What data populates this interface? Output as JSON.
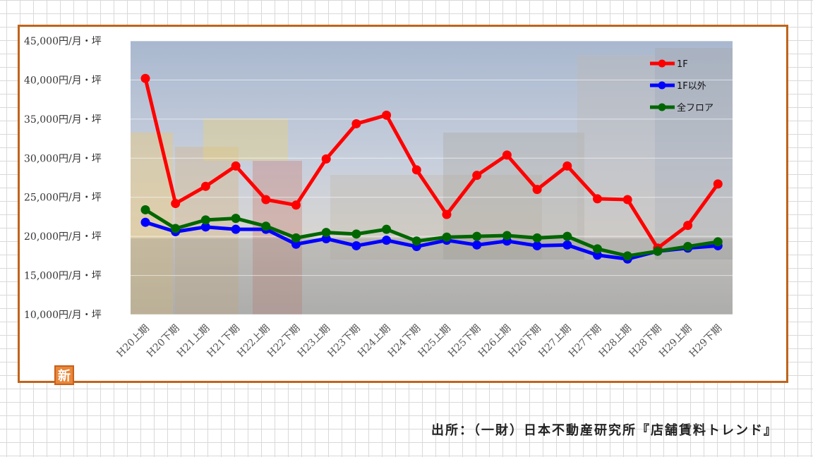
{
  "source": "出所：（一財）日本不動産研究所『店舗賃料トレンド』",
  "badge_text": "新",
  "chart_data": {
    "type": "line",
    "title": "",
    "xlabel": "",
    "ylabel": "",
    "ylim": [
      10000,
      45000
    ],
    "yticks": [
      10000,
      15000,
      20000,
      25000,
      30000,
      35000,
      40000,
      45000
    ],
    "ytick_labels": [
      "10,000円/月・坪",
      "15,000円/月・坪",
      "20,000円/月・坪",
      "25,000円/月・坪",
      "30,000円/月・坪",
      "35,000円/月・坪",
      "40,000円/月・坪",
      "45,000円/月・坪"
    ],
    "grid": true,
    "legend_position": "top-right",
    "background": "night street photo (faded)",
    "categories": [
      "H20上期",
      "H20下期",
      "H21上期",
      "H21下期",
      "H22上期",
      "H22下期",
      "H23上期",
      "H23下期",
      "H24上期",
      "H24下期",
      "H25上期",
      "H25下期",
      "H26上期",
      "H26下期",
      "H27上期",
      "H27下期",
      "H28上期",
      "H28下期",
      "H29上期",
      "H29下期"
    ],
    "series": [
      {
        "name": "1F",
        "color": "#ff0000",
        "values": [
          40200,
          24200,
          26400,
          29000,
          24700,
          24000,
          29900,
          34400,
          35500,
          28500,
          22800,
          27800,
          30400,
          26000,
          29000,
          24800,
          24700,
          18500,
          21400,
          26700
        ]
      },
      {
        "name": "1F以外",
        "color": "#0000ff",
        "values": [
          21800,
          20600,
          21200,
          20900,
          20900,
          19000,
          19700,
          18800,
          19500,
          18700,
          19500,
          18900,
          19400,
          18800,
          18900,
          17600,
          17100,
          18100,
          18500,
          18800
        ]
      },
      {
        "name": "全フロア",
        "color": "#006600",
        "values": [
          23400,
          21000,
          22100,
          22300,
          21300,
          19800,
          20500,
          20300,
          20900,
          19400,
          19900,
          20000,
          20100,
          19800,
          20000,
          18400,
          17500,
          18100,
          18700,
          19300
        ]
      }
    ]
  }
}
